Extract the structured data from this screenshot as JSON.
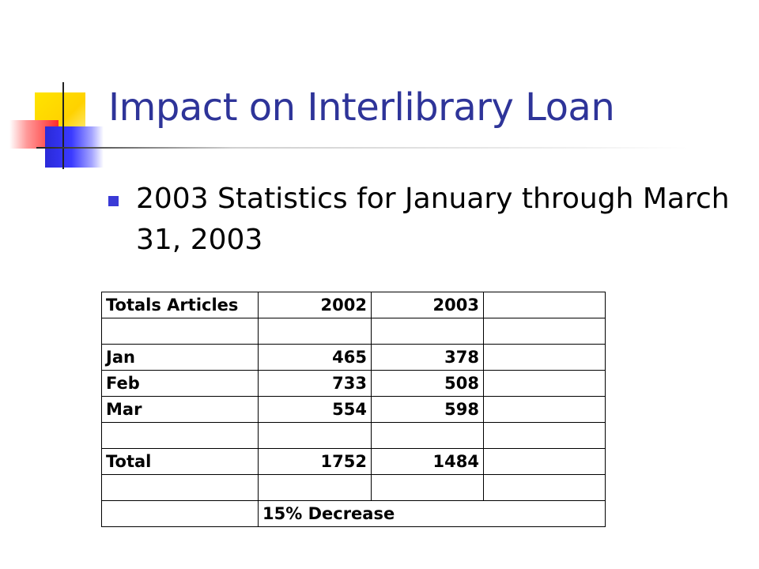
{
  "slide": {
    "title": "Impact on Interlibrary Loan",
    "bullets": [
      "2003 Statistics for January through March 31, 2003"
    ]
  },
  "table": {
    "header": [
      "Totals Articles",
      "2002",
      "2003",
      ""
    ],
    "rows": [
      [
        "",
        "",
        "",
        ""
      ],
      [
        "Jan",
        "465",
        "378",
        ""
      ],
      [
        "Feb",
        "733",
        "508",
        ""
      ],
      [
        "Mar",
        "554",
        "598",
        ""
      ],
      [
        "",
        "",
        "",
        ""
      ],
      [
        "Total",
        "1752",
        "1484",
        ""
      ],
      [
        "",
        "",
        "",
        ""
      ]
    ],
    "footer_note": "15% Decrease"
  },
  "colors": {
    "title": "#2e3499",
    "bullet": "#3a3ad6",
    "accent_yellow": "#ffd800",
    "accent_red": "#ff2a2a",
    "accent_blue": "#2a2ad8"
  }
}
